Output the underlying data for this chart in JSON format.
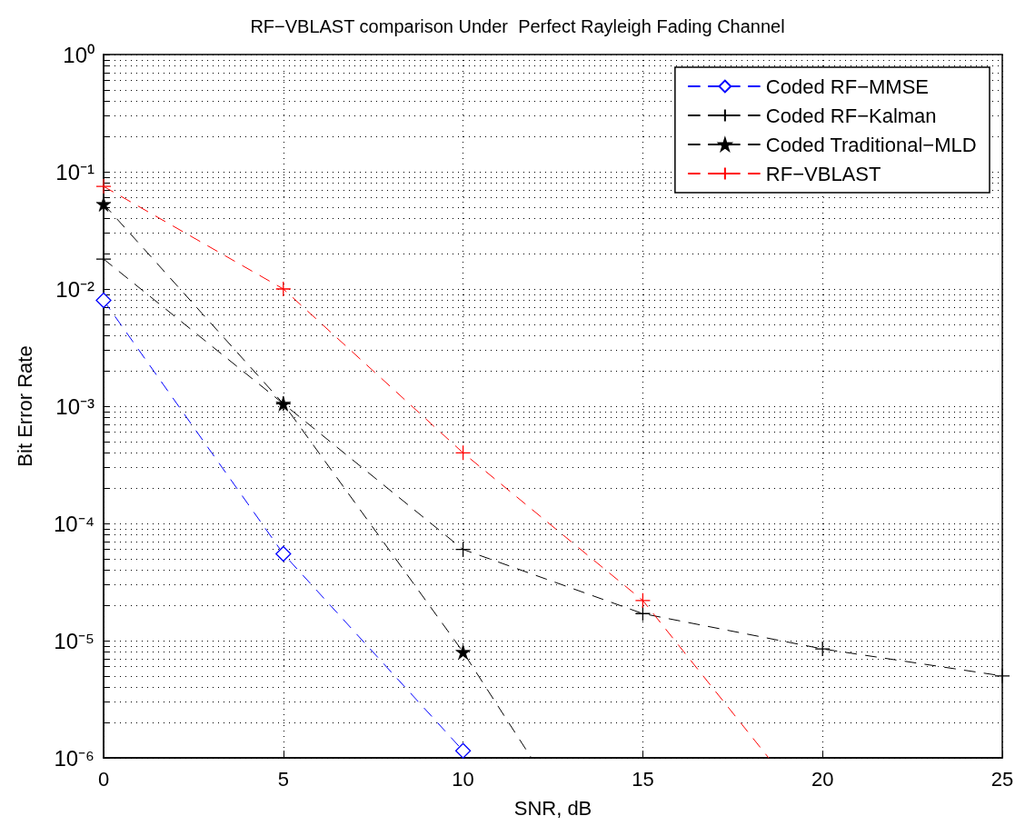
{
  "chart_data": {
    "type": "line",
    "title": "RF−VBLAST comparison Under  Perfect Rayleigh Fading Channel",
    "xlabel": "SNR, dB",
    "ylabel": "Bit Error Rate",
    "x": [
      0,
      5,
      10,
      15,
      20,
      25
    ],
    "series": [
      {
        "name": "Coded RF−MMSE",
        "color": "#0000ff",
        "marker": "diamond",
        "x": [
          0,
          5,
          10
        ],
        "values": [
          0.008,
          5.5e-05,
          1.15e-06
        ]
      },
      {
        "name": "Coded RF−Kalman",
        "color": "#000000",
        "marker": "cross",
        "values": [
          0.018,
          0.00105,
          6e-05,
          1.7e-05,
          8.5e-06,
          5e-06
        ]
      },
      {
        "name": "Coded Traditional−MLD",
        "color": "#000000",
        "marker": "star",
        "x": [
          0,
          5,
          10,
          11.9
        ],
        "values": [
          0.053,
          0.00105,
          8e-06,
          1e-06
        ]
      },
      {
        "name": "RF−VBLAST",
        "color": "#ff0000",
        "marker": "cross",
        "x": [
          0,
          5,
          10,
          15,
          18.5
        ],
        "values": [
          0.075,
          0.01,
          0.0004,
          2.2e-05,
          1e-06
        ]
      }
    ],
    "log": "y",
    "xlim": [
      0,
      25
    ],
    "xticks": [
      0,
      5,
      10,
      15,
      20,
      25
    ],
    "ylim": [
      1e-06,
      1
    ],
    "yticks": [
      {
        "value": 1e-06,
        "label": "10⁻⁶"
      },
      {
        "value": 1e-05,
        "label": "10⁻⁵"
      },
      {
        "value": 0.0001,
        "label": "10⁻⁴"
      },
      {
        "value": 0.001,
        "label": "10⁻³"
      },
      {
        "value": 0.01,
        "label": "10⁻²"
      },
      {
        "value": 0.1,
        "label": "10⁻¹"
      },
      {
        "value": 1,
        "label": "10⁰"
      }
    ],
    "grid": true,
    "legend": "top right",
    "line_style": "dashed"
  }
}
